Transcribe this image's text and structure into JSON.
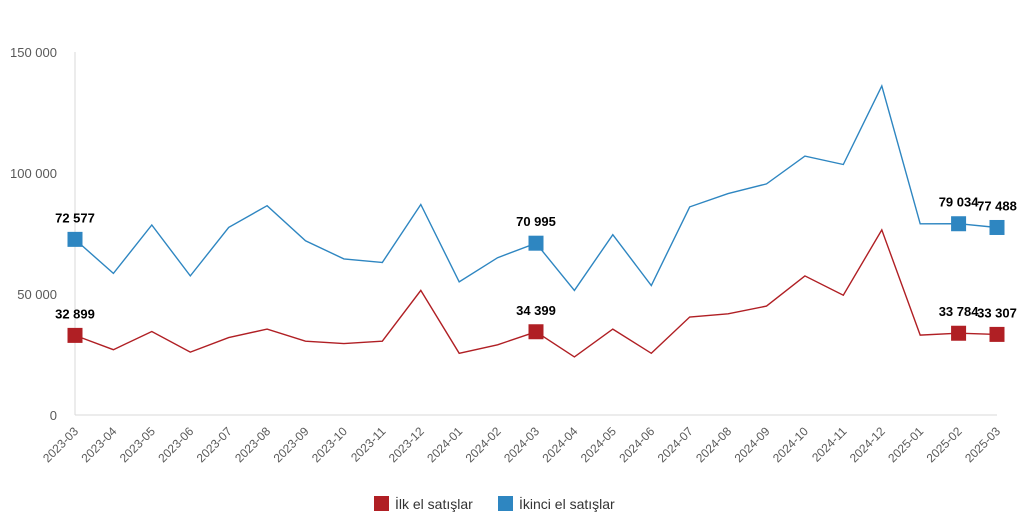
{
  "chart_data": {
    "type": "line",
    "categories": [
      "2023-03",
      "2023-04",
      "2023-05",
      "2023-06",
      "2023-07",
      "2023-08",
      "2023-09",
      "2023-10",
      "2023-11",
      "2023-12",
      "2024-01",
      "2024-02",
      "2024-03",
      "2024-04",
      "2024-05",
      "2024-06",
      "2024-07",
      "2024-08",
      "2024-09",
      "2024-10",
      "2024-11",
      "2024-12",
      "2025-01",
      "2025-02",
      "2025-03"
    ],
    "ylim": [
      0,
      150000
    ],
    "yticks": [
      0,
      50000,
      100000,
      150000
    ],
    "ytick_labels": [
      "0",
      "50 000",
      "100 000",
      "150 000"
    ],
    "grid": false,
    "legend_position": "bottom",
    "series": [
      {
        "name": "İlk el satışlar",
        "color": "#B01F24",
        "values": [
          32899,
          27000,
          34500,
          26000,
          32000,
          35500,
          30500,
          29500,
          30500,
          51500,
          25500,
          29000,
          34399,
          24000,
          35500,
          25500,
          40500,
          41800,
          45000,
          57500,
          49500,
          76500,
          33000,
          33784,
          33307
        ],
        "labels": {
          "0": "32 899",
          "12": "34 399",
          "23": "33 784",
          "24": "33 307"
        }
      },
      {
        "name": "İkinci el satışlar",
        "color": "#2E86C1",
        "values": [
          72577,
          58500,
          78500,
          57500,
          77500,
          86500,
          72000,
          64500,
          63000,
          87000,
          55000,
          65000,
          70995,
          51500,
          74500,
          53500,
          86000,
          91500,
          95500,
          107000,
          103500,
          136000,
          79000,
          79034,
          77488
        ],
        "labels": {
          "0": "72 577",
          "12": "70 995",
          "23": "79 034",
          "24": "77 488"
        }
      }
    ]
  }
}
